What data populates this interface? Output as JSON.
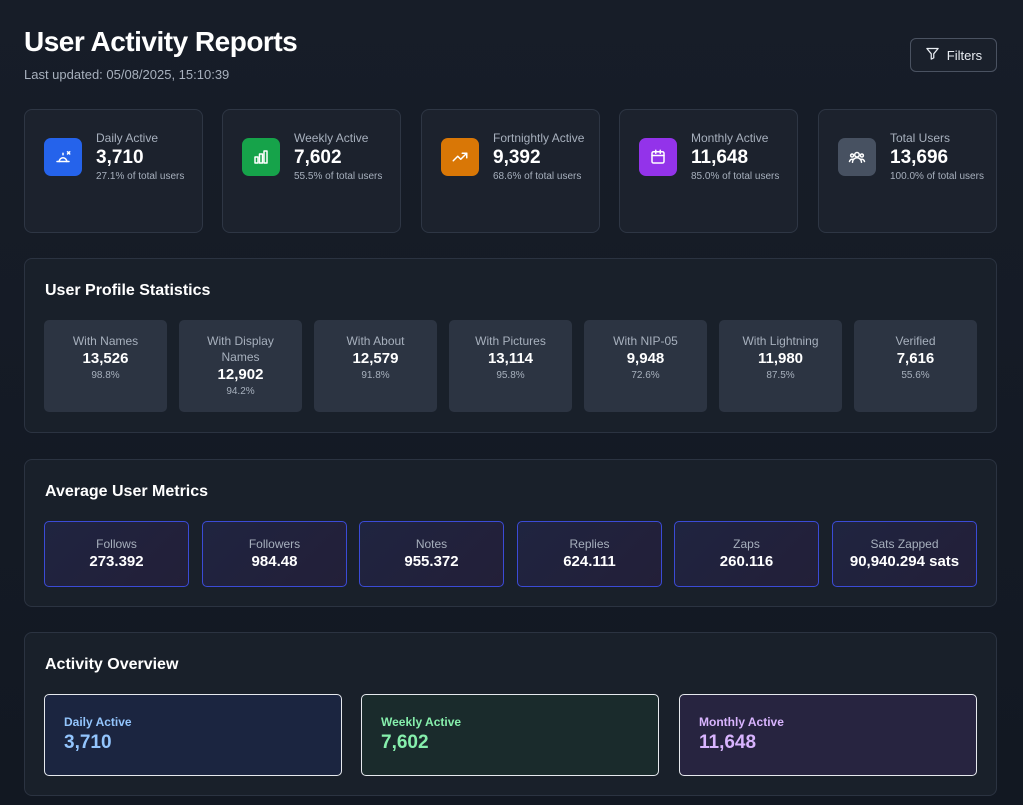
{
  "header": {
    "title": "User Activity Reports",
    "last_updated": "Last updated: 05/08/2025, 15:10:39",
    "filters_label": "Filters"
  },
  "stats": [
    {
      "label": "Daily Active",
      "value": "3,710",
      "sub": "27.1% of total users",
      "icon": "sun-moon-icon",
      "color": "#2563eb"
    },
    {
      "label": "Weekly Active",
      "value": "7,602",
      "sub": "55.5% of total users",
      "icon": "bar-chart-icon",
      "color": "#16a34a"
    },
    {
      "label": "Fortnightly Active",
      "value": "9,392",
      "sub": "68.6% of total users",
      "icon": "trending-up-icon",
      "color": "#d97706"
    },
    {
      "label": "Monthly Active",
      "value": "11,648",
      "sub": "85.0% of total users",
      "icon": "calendar-icon",
      "color": "#9333ea"
    },
    {
      "label": "Total Users",
      "value": "13,696",
      "sub": "100.0% of total users",
      "icon": "users-icon",
      "color": "#475161"
    }
  ],
  "profile": {
    "title": "User Profile Statistics",
    "items": [
      {
        "label": "With Names",
        "value": "13,526",
        "pct": "98.8%"
      },
      {
        "label": "With Display Names",
        "value": "12,902",
        "pct": "94.2%"
      },
      {
        "label": "With About",
        "value": "12,579",
        "pct": "91.8%"
      },
      {
        "label": "With Pictures",
        "value": "13,114",
        "pct": "95.8%"
      },
      {
        "label": "With NIP-05",
        "value": "9,948",
        "pct": "72.6%"
      },
      {
        "label": "With Lightning",
        "value": "11,980",
        "pct": "87.5%"
      },
      {
        "label": "Verified",
        "value": "7,616",
        "pct": "55.6%"
      }
    ]
  },
  "metrics": {
    "title": "Average User Metrics",
    "items": [
      {
        "label": "Follows",
        "value": "273.392"
      },
      {
        "label": "Followers",
        "value": "984.48"
      },
      {
        "label": "Notes",
        "value": "955.372"
      },
      {
        "label": "Replies",
        "value": "624.111"
      },
      {
        "label": "Zaps",
        "value": "260.116"
      },
      {
        "label": "Sats Zapped",
        "value": "90,940.294 sats"
      }
    ]
  },
  "activity": {
    "title": "Activity Overview",
    "items": [
      {
        "label": "Daily Active",
        "value": "3,710",
        "accent": "#93c5fd",
        "bg": "#1b2540"
      },
      {
        "label": "Weekly Active",
        "value": "7,602",
        "accent": "#86efac",
        "bg": "#1a2b2c"
      },
      {
        "label": "Monthly Active",
        "value": "11,648",
        "accent": "#d8b4fe",
        "bg": "#272440"
      }
    ]
  }
}
